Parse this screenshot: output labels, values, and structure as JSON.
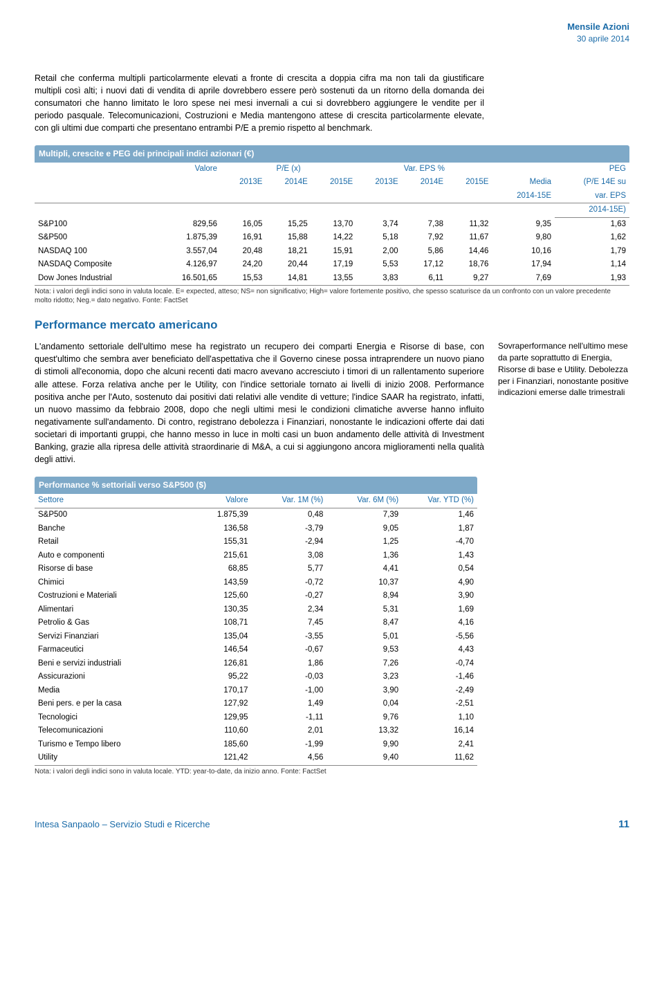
{
  "header": {
    "title": "Mensile Azioni",
    "date": "30 aprile 2014"
  },
  "intro_paragraph": "Retail che conferma multipli particolarmente elevati a fronte di crescita a doppia cifra ma non tali da giustificare multipli così alti; i nuovi dati di vendita di aprile dovrebbero essere però sostenuti da un ritorno della domanda dei consumatori che hanno limitato le loro spese nei mesi invernali a cui si dovrebbero aggiungere le vendite per il periodo pasquale. Telecomunicazioni, Costruzioni e Media mantengono attese di crescita particolarmente elevate, con gli ultimi due comparti che presentano entrambi P/E a premio rispetto al benchmark.",
  "table1": {
    "title": "Multipli, crescite e PEG dei principali indici azionari (€)",
    "col_labels": {
      "valore": "Valore",
      "pe": "P/E (x)",
      "var_eps": "Var. EPS %",
      "peg": "PEG",
      "media": "Media",
      "media_sub": "2014-15E",
      "peg_sub1": "(P/E 14E su",
      "peg_sub2": "var. EPS",
      "peg_sub3": "2014-15E)",
      "y13": "2013E",
      "y14": "2014E",
      "y15": "2015E"
    },
    "rows": [
      {
        "name": "S&P100",
        "val": "829,56",
        "pe13": "16,05",
        "pe14": "15,25",
        "pe15": "13,70",
        "e13": "3,74",
        "e14": "7,38",
        "e15": "11,32",
        "med": "9,35",
        "peg": "1,63"
      },
      {
        "name": "S&P500",
        "val": "1.875,39",
        "pe13": "16,91",
        "pe14": "15,88",
        "pe15": "14,22",
        "e13": "5,18",
        "e14": "7,92",
        "e15": "11,67",
        "med": "9,80",
        "peg": "1,62"
      },
      {
        "name": "NASDAQ 100",
        "val": "3.557,04",
        "pe13": "20,48",
        "pe14": "18,21",
        "pe15": "15,91",
        "e13": "2,00",
        "e14": "5,86",
        "e15": "14,46",
        "med": "10,16",
        "peg": "1,79"
      },
      {
        "name": "NASDAQ Composite",
        "val": "4.126,97",
        "pe13": "24,20",
        "pe14": "20,44",
        "pe15": "17,19",
        "e13": "5,53",
        "e14": "17,12",
        "e15": "18,76",
        "med": "17,94",
        "peg": "1,14"
      },
      {
        "name": "Dow Jones Industrial",
        "val": "16.501,65",
        "pe13": "15,53",
        "pe14": "14,81",
        "pe15": "13,55",
        "e13": "3,83",
        "e14": "6,11",
        "e15": "9,27",
        "med": "7,69",
        "peg": "1,93"
      }
    ],
    "note": "Nota: i valori degli indici sono in valuta locale. E= expected, atteso; NS= non significativo; High= valore fortemente positivo, che spesso scaturisce da un confronto con un valore precedente molto ridotto; Neg.= dato negativo. Fonte: FactSet"
  },
  "section2_title": "Performance mercato americano",
  "section2_body": "L'andamento settoriale dell'ultimo mese ha registrato un recupero dei comparti Energia e Risorse di base, con quest'ultimo che sembra aver beneficiato dell'aspettativa che il Governo cinese possa intraprendere un nuovo piano di stimoli all'economia, dopo che alcuni recenti dati macro avevano accresciuto i timori di un rallentamento superiore alle attese. Forza relativa anche per le Utility, con l'indice settoriale tornato ai livelli di inizio 2008. Performance positiva anche per l'Auto, sostenuto dai positivi dati relativi alle vendite di vetture; l'indice SAAR ha registrato, infatti, un nuovo massimo da febbraio 2008, dopo che negli ultimi mesi le condizioni climatiche avverse hanno influito negativamente sull'andamento. Di contro, registrano debolezza i Finanziari, nonostante le indicazioni offerte dai dati societari di importanti gruppi, che hanno messo in luce in molti casi un buon andamento delle attività di Investment Banking, grazie alla ripresa delle attività straordinarie di M&A, a cui si aggiungono ancora miglioramenti nella qualità degli attivi.",
  "side_note": "Sovraperformance nell'ultimo mese da parte soprattutto di Energia, Risorse di base e Utility. Debolezza per i Finanziari, nonostante positive indicazioni emerse dalle trimestrali",
  "table2": {
    "title": "Performance % settoriali verso S&P500 ($)",
    "headers": {
      "settore": "Settore",
      "valore": "Valore",
      "v1m": "Var. 1M (%)",
      "v6m": "Var. 6M (%)",
      "vytd": "Var. YTD (%)"
    },
    "rows": [
      {
        "s": "S&P500",
        "v": "1.875,39",
        "m1": "0,48",
        "m6": "7,39",
        "ytd": "1,46"
      },
      {
        "s": "Banche",
        "v": "136,58",
        "m1": "-3,79",
        "m6": "9,05",
        "ytd": "1,87"
      },
      {
        "s": "Retail",
        "v": "155,31",
        "m1": "-2,94",
        "m6": "1,25",
        "ytd": "-4,70"
      },
      {
        "s": "Auto e componenti",
        "v": "215,61",
        "m1": "3,08",
        "m6": "1,36",
        "ytd": "1,43"
      },
      {
        "s": "Risorse di base",
        "v": "68,85",
        "m1": "5,77",
        "m6": "4,41",
        "ytd": "0,54"
      },
      {
        "s": "Chimici",
        "v": "143,59",
        "m1": "-0,72",
        "m6": "10,37",
        "ytd": "4,90"
      },
      {
        "s": "Costruzioni e Materiali",
        "v": "125,60",
        "m1": "-0,27",
        "m6": "8,94",
        "ytd": "3,90"
      },
      {
        "s": "Alimentari",
        "v": "130,35",
        "m1": "2,34",
        "m6": "5,31",
        "ytd": "1,69"
      },
      {
        "s": "Petrolio & Gas",
        "v": "108,71",
        "m1": "7,45",
        "m6": "8,47",
        "ytd": "4,16"
      },
      {
        "s": "Servizi Finanziari",
        "v": "135,04",
        "m1": "-3,55",
        "m6": "5,01",
        "ytd": "-5,56"
      },
      {
        "s": "Farmaceutici",
        "v": "146,54",
        "m1": "-0,67",
        "m6": "9,53",
        "ytd": "4,43"
      },
      {
        "s": "Beni e servizi industriali",
        "v": "126,81",
        "m1": "1,86",
        "m6": "7,26",
        "ytd": "-0,74"
      },
      {
        "s": "Assicurazioni",
        "v": "95,22",
        "m1": "-0,03",
        "m6": "3,23",
        "ytd": "-1,46"
      },
      {
        "s": "Media",
        "v": "170,17",
        "m1": "-1,00",
        "m6": "3,90",
        "ytd": "-2,49"
      },
      {
        "s": "Beni pers. e per la casa",
        "v": "127,92",
        "m1": "1,49",
        "m6": "0,04",
        "ytd": "-2,51"
      },
      {
        "s": "Tecnologici",
        "v": "129,95",
        "m1": "-1,11",
        "m6": "9,76",
        "ytd": "1,10"
      },
      {
        "s": "Telecomunicazioni",
        "v": "110,60",
        "m1": "2,01",
        "m6": "13,32",
        "ytd": "16,14"
      },
      {
        "s": "Turismo e Tempo libero",
        "v": "185,60",
        "m1": "-1,99",
        "m6": "9,90",
        "ytd": "2,41"
      },
      {
        "s": "Utility",
        "v": "121,42",
        "m1": "4,56",
        "m6": "9,40",
        "ytd": "11,62"
      }
    ],
    "note": "Nota: i valori degli indici sono in valuta locale. YTD: year-to-date, da inizio anno. Fonte: FactSet"
  },
  "footer": {
    "left": "Intesa Sanpaolo – Servizio Studi e Ricerche",
    "page": "11"
  },
  "colors": {
    "accent": "#1a6ba8",
    "table_header_bg": "#7ea9c8",
    "text": "#000000",
    "note": "#333333"
  }
}
